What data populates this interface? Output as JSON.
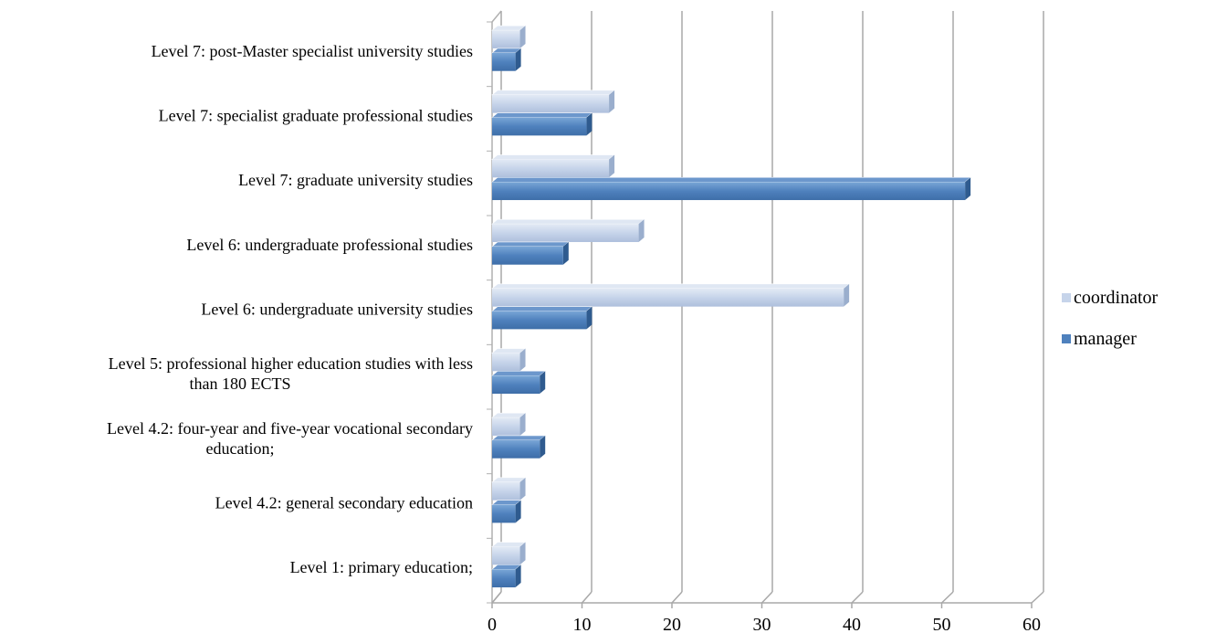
{
  "chart_data": {
    "type": "bar",
    "orientation": "horizontal",
    "three_d": true,
    "categories": [
      [
        "Level 1: primary education;"
      ],
      [
        "Level 4.2: general secondary education"
      ],
      [
        "Level 4.2: four-year and five-year vocational secondary",
        "education;"
      ],
      [
        "Level 5: professional higher education studies with less",
        "than 180 ECTS"
      ],
      [
        "Level 6: undergraduate university studies"
      ],
      [
        "Level 6: undergraduate professional studies"
      ],
      [
        "Level 7: graduate university studies"
      ],
      [
        "Level 7: specialist graduate professional studies"
      ],
      [
        "Level 7: post-Master specialist university studies"
      ]
    ],
    "series": [
      {
        "name": "manager",
        "color": "#4f81bd",
        "values": [
          2.6,
          2.6,
          5.3,
          5.3,
          10.5,
          7.9,
          52.6,
          10.5,
          2.6
        ]
      },
      {
        "name": "coordinator",
        "color": "#c6d4ea",
        "values": [
          3.1,
          3.1,
          3.1,
          3.1,
          39.1,
          16.3,
          13.0,
          13.0,
          3.1
        ]
      }
    ],
    "x_ticks": [
      "0",
      "10",
      "20",
      "30",
      "40",
      "50",
      "60"
    ],
    "xlim": [
      0,
      60
    ],
    "grid": true,
    "legend": {
      "position": "right",
      "entries": [
        "coordinator",
        "manager"
      ]
    }
  }
}
